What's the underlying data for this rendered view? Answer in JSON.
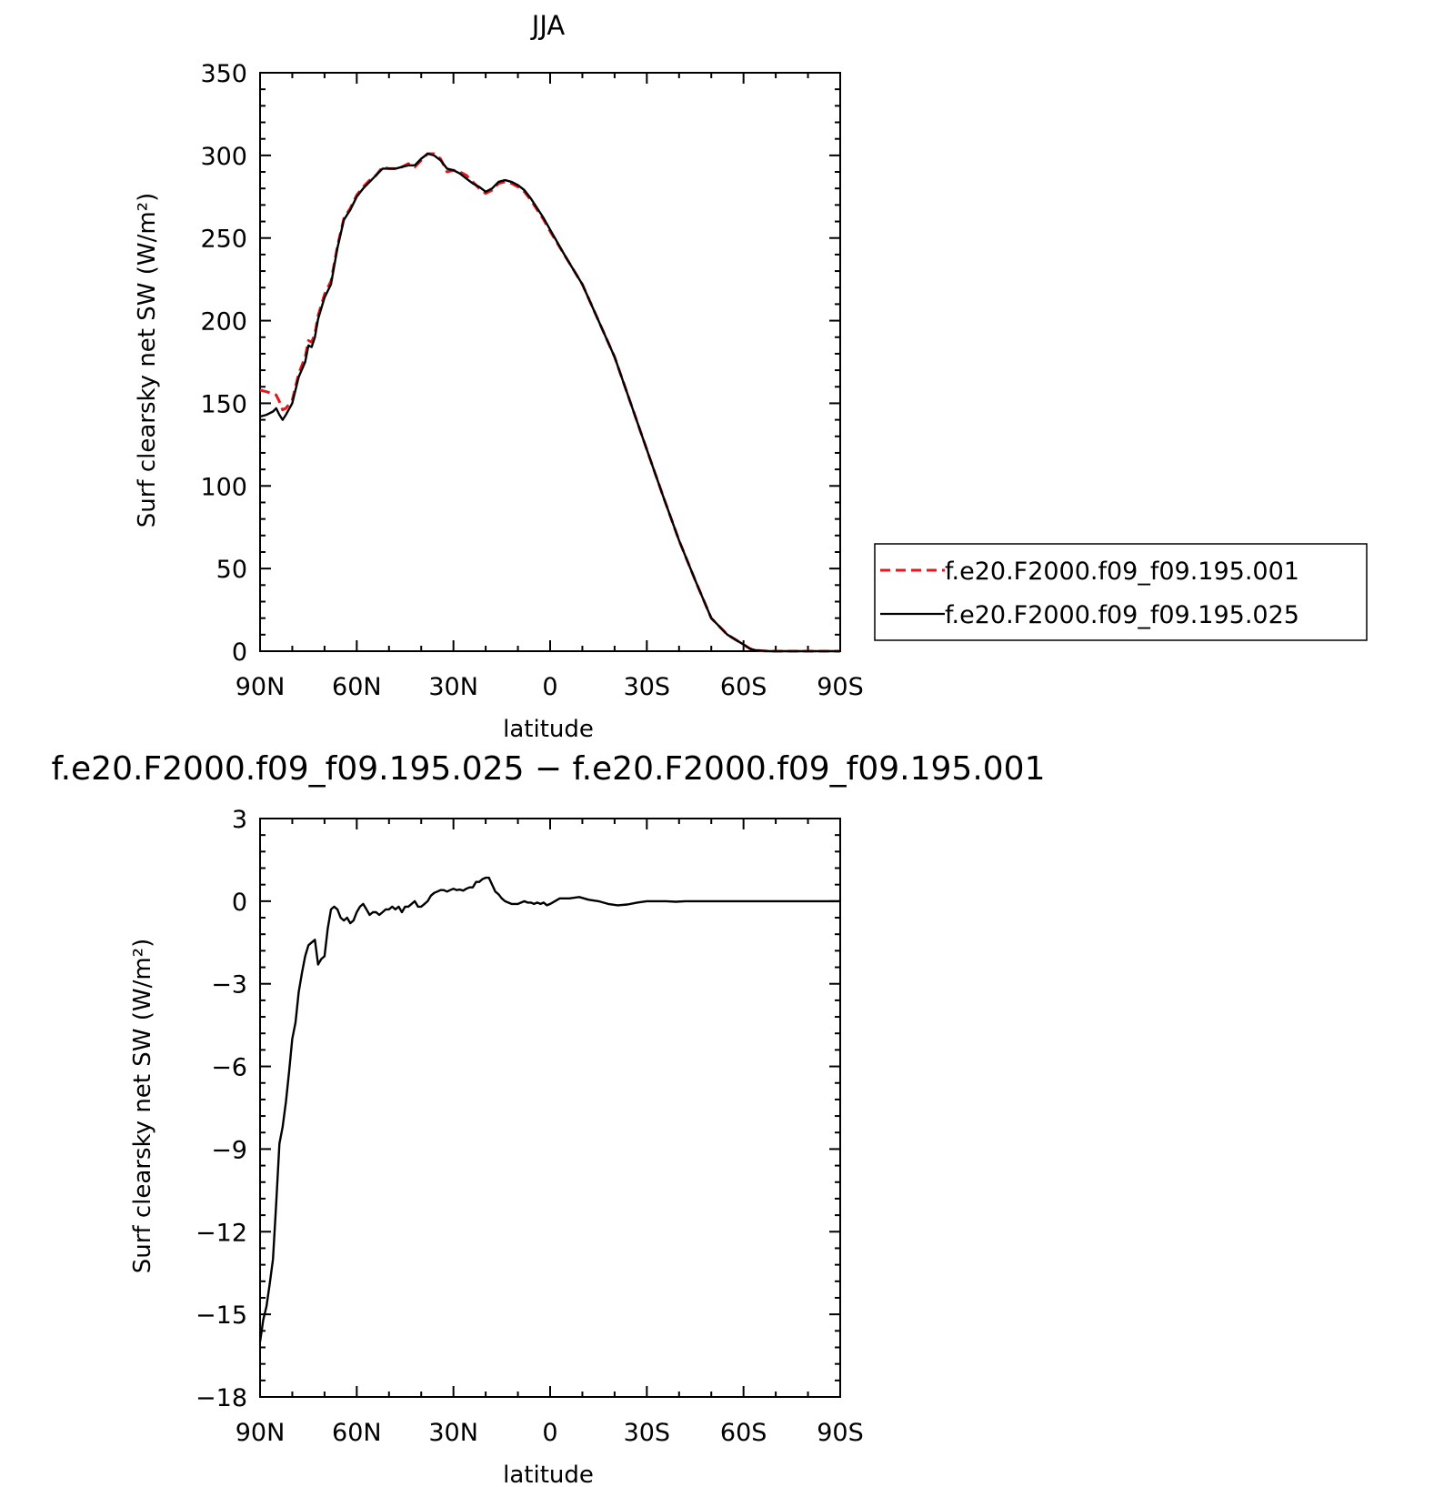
{
  "chart_data": [
    {
      "type": "line",
      "title": "JJA",
      "xlabel": "latitude",
      "ylabel": "Surf clearsky net SW (W/m²)",
      "xlim": [
        90,
        -90
      ],
      "ylim": [
        0,
        350
      ],
      "x_ticks": [
        {
          "value": 90,
          "label": "90N"
        },
        {
          "value": 60,
          "label": "60N"
        },
        {
          "value": 30,
          "label": "30N"
        },
        {
          "value": 0,
          "label": "0"
        },
        {
          "value": -30,
          "label": "30S"
        },
        {
          "value": -60,
          "label": "60S"
        },
        {
          "value": -90,
          "label": "90S"
        }
      ],
      "y_ticks": [
        0,
        50,
        100,
        150,
        200,
        250,
        300,
        350
      ],
      "grid": false,
      "legend_position": "right",
      "series": [
        {
          "name": "f.e20.F2000.f09_f09.195.001",
          "color": "#e8161c",
          "dash": "dashed",
          "x": [
            90,
            88,
            85,
            84,
            83,
            82,
            80,
            78,
            76,
            75,
            74,
            73,
            72,
            70,
            68,
            66,
            64,
            62,
            60,
            58,
            56,
            54,
            52,
            50,
            48,
            46,
            44,
            42,
            40,
            38,
            36,
            34,
            32,
            30,
            28,
            26,
            24,
            22,
            20,
            18,
            16,
            14,
            12,
            10,
            8,
            6,
            4,
            2,
            0,
            -5,
            -10,
            -15,
            -20,
            -25,
            -30,
            -35,
            -40,
            -45,
            -50,
            -55,
            -60,
            -62,
            -64,
            -66,
            -68,
            -70,
            -75,
            -80,
            -90
          ],
          "y": [
            158,
            157,
            155,
            151,
            146,
            147,
            152,
            168,
            178,
            188,
            187,
            192,
            203,
            216,
            224,
            245,
            262,
            268,
            276,
            281,
            285,
            288,
            293,
            292,
            292,
            293,
            295,
            293,
            297,
            301,
            301,
            298,
            290,
            291,
            290,
            288,
            284,
            280,
            277,
            279,
            283,
            284,
            283,
            281,
            278,
            273,
            267,
            261,
            254,
            238,
            222,
            200,
            178,
            150,
            122,
            94,
            67,
            43,
            20,
            10,
            4,
            1.5,
            0.5,
            0.2,
            0,
            0,
            0,
            0,
            0
          ]
        },
        {
          "name": "f.e20.F2000.f09_f09.195.025",
          "color": "#000000",
          "dash": "solid",
          "x": [
            90,
            88,
            86,
            85,
            84,
            83,
            82,
            80,
            78,
            76,
            75,
            74,
            73,
            72,
            70,
            68,
            66,
            64,
            62,
            60,
            58,
            56,
            54,
            52,
            50,
            48,
            46,
            44,
            42,
            40,
            38,
            36,
            34,
            32,
            30,
            28,
            26,
            24,
            22,
            20,
            18,
            16,
            14,
            12,
            10,
            8,
            6,
            4,
            2,
            0,
            -5,
            -10,
            -15,
            -20,
            -25,
            -30,
            -35,
            -40,
            -45,
            -50,
            -55,
            -60,
            -62,
            -64,
            -66,
            -68,
            -70,
            -75,
            -80,
            -90
          ],
          "y": [
            142,
            143,
            145,
            147,
            143,
            140,
            143,
            150,
            166,
            175,
            185,
            184,
            190,
            201,
            214,
            222,
            244,
            261,
            267,
            275,
            280,
            284,
            288,
            292,
            292,
            292,
            293,
            294,
            294,
            298,
            301,
            300,
            297,
            292,
            291,
            289,
            286,
            283,
            281,
            278,
            280,
            284,
            285,
            284,
            282,
            279,
            274,
            268,
            262,
            255,
            238,
            222,
            200,
            178,
            150,
            122,
            94,
            67,
            43,
            20,
            10,
            4,
            1.5,
            0.5,
            0.2,
            0,
            0,
            0,
            0,
            0
          ]
        }
      ]
    },
    {
      "type": "line",
      "title": "f.e20.F2000.f09_f09.195.025 − f.e20.F2000.f09_f09.195.001",
      "xlabel": "latitude",
      "ylabel": "Surf clearsky net SW (W/m²)",
      "xlim": [
        90,
        -90
      ],
      "ylim": [
        -18,
        3
      ],
      "x_ticks": [
        {
          "value": 90,
          "label": "90N"
        },
        {
          "value": 60,
          "label": "60N"
        },
        {
          "value": 30,
          "label": "30N"
        },
        {
          "value": 0,
          "label": "0"
        },
        {
          "value": -30,
          "label": "30S"
        },
        {
          "value": -60,
          "label": "60S"
        },
        {
          "value": -90,
          "label": "90S"
        }
      ],
      "y_ticks": [
        {
          "value": 3,
          "label": "3"
        },
        {
          "value": 0,
          "label": "0"
        },
        {
          "value": -3,
          "label": "−3"
        },
        {
          "value": -6,
          "label": "−6"
        },
        {
          "value": -9,
          "label": "−9"
        },
        {
          "value": -12,
          "label": "−12"
        },
        {
          "value": -15,
          "label": "−15"
        },
        {
          "value": -18,
          "label": "−18"
        }
      ],
      "grid": false,
      "series": [
        {
          "color": "#000000",
          "dash": "solid",
          "x": [
            90,
            89,
            88,
            87,
            86,
            85,
            84,
            83,
            82,
            81,
            80,
            79,
            78,
            77,
            76,
            75,
            74,
            73,
            72,
            71,
            70,
            69,
            68,
            67,
            66,
            65,
            64,
            63,
            62,
            61,
            60,
            59,
            58,
            57,
            56,
            55,
            54,
            53,
            52,
            51,
            50,
            49,
            48,
            47,
            46,
            45,
            44,
            43,
            42,
            41,
            40,
            39,
            38,
            37,
            36,
            35,
            34,
            33,
            32,
            31,
            30,
            29,
            28,
            27,
            26,
            25,
            24,
            23,
            22,
            21,
            20,
            19,
            18,
            17,
            16,
            15,
            14,
            13,
            12,
            11,
            10,
            9,
            8,
            7,
            6,
            5,
            4,
            3,
            2,
            1,
            0,
            -3,
            -6,
            -9,
            -12,
            -15,
            -18,
            -21,
            -24,
            -27,
            -30,
            -33,
            -36,
            -39,
            -42,
            -45,
            -48,
            -51,
            -54,
            -57,
            -60,
            -63,
            -66,
            -70,
            -75,
            -80,
            -90
          ],
          "y": [
            -16.0,
            -15.2,
            -14.7,
            -13.9,
            -13.0,
            -11.0,
            -8.8,
            -8.2,
            -7.3,
            -6.2,
            -5.0,
            -4.4,
            -3.3,
            -2.6,
            -2.0,
            -1.6,
            -1.5,
            -1.4,
            -2.3,
            -2.1,
            -2.0,
            -1.0,
            -0.3,
            -0.2,
            -0.3,
            -0.6,
            -0.7,
            -0.6,
            -0.8,
            -0.7,
            -0.4,
            -0.2,
            -0.1,
            -0.3,
            -0.5,
            -0.4,
            -0.4,
            -0.5,
            -0.4,
            -0.3,
            -0.3,
            -0.2,
            -0.3,
            -0.2,
            -0.4,
            -0.2,
            -0.2,
            -0.1,
            0.0,
            -0.2,
            -0.2,
            -0.1,
            0.0,
            0.2,
            0.3,
            0.35,
            0.4,
            0.4,
            0.35,
            0.4,
            0.45,
            0.4,
            0.42,
            0.38,
            0.45,
            0.5,
            0.5,
            0.7,
            0.7,
            0.8,
            0.85,
            0.85,
            0.6,
            0.35,
            0.25,
            0.1,
            0.0,
            -0.05,
            -0.1,
            -0.1,
            -0.1,
            -0.05,
            0.0,
            -0.05,
            -0.05,
            -0.1,
            -0.05,
            -0.1,
            -0.05,
            -0.15,
            -0.1,
            0.1,
            0.1,
            0.15,
            0.05,
            0.0,
            -0.1,
            -0.15,
            -0.12,
            -0.05,
            0.0,
            0.0,
            0.0,
            -0.02,
            0.0,
            0.0,
            0.0,
            0.0,
            0.0,
            0.0,
            0.0,
            0.0,
            0.0,
            0.0,
            0.0,
            0.0,
            0.0
          ]
        }
      ]
    }
  ]
}
